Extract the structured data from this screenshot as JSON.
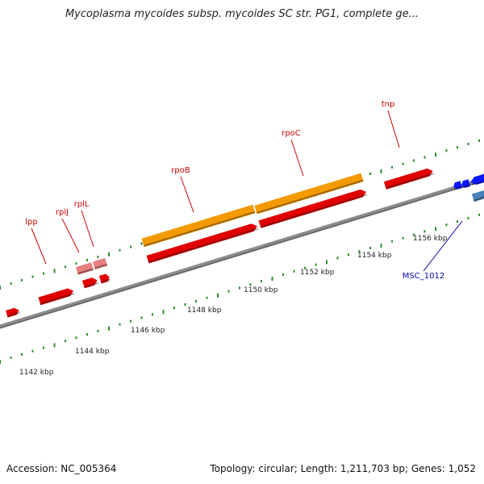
{
  "title": "Mycoplasma mycoides subsp. mycoides SC str. PG1, complete ge...",
  "footer": {
    "accession": "Accession: NC_005364",
    "summary": "Topology: circular; Length: 1,211,703 bp; Genes: 1,052"
  },
  "colors": {
    "backbone": "#8c8c8c",
    "tick": "#2e8b2e",
    "gene_red": "#e00000",
    "gene_pink": "#e88080",
    "gene_orange": "#f39a00",
    "gene_blue": "#0a18ff",
    "gene_steelblue": "#4a80b8",
    "label_red": "#cc0000",
    "label_blue": "#0000b0"
  },
  "scale_labels": [
    "1142 kbp",
    "1144 kbp",
    "1146 kbp",
    "1148 kbp",
    "1150 kbp",
    "1152 kbp",
    "1154 kbp",
    "1156 kbp"
  ],
  "gene_labels": [
    {
      "id": "lpp",
      "text": "lpp",
      "color": "label_red"
    },
    {
      "id": "rplJ",
      "text": "rplJ",
      "color": "label_red"
    },
    {
      "id": "rplL",
      "text": "rplL",
      "color": "label_red"
    },
    {
      "id": "rpoB",
      "text": "rpoB",
      "color": "label_red"
    },
    {
      "id": "rpoC",
      "text": "rpoC",
      "color": "label_red"
    },
    {
      "id": "tnp",
      "text": "tnp",
      "color": "label_red"
    },
    {
      "id": "msc1012",
      "text": "MSC_1012",
      "color": "label_blue"
    }
  ]
}
